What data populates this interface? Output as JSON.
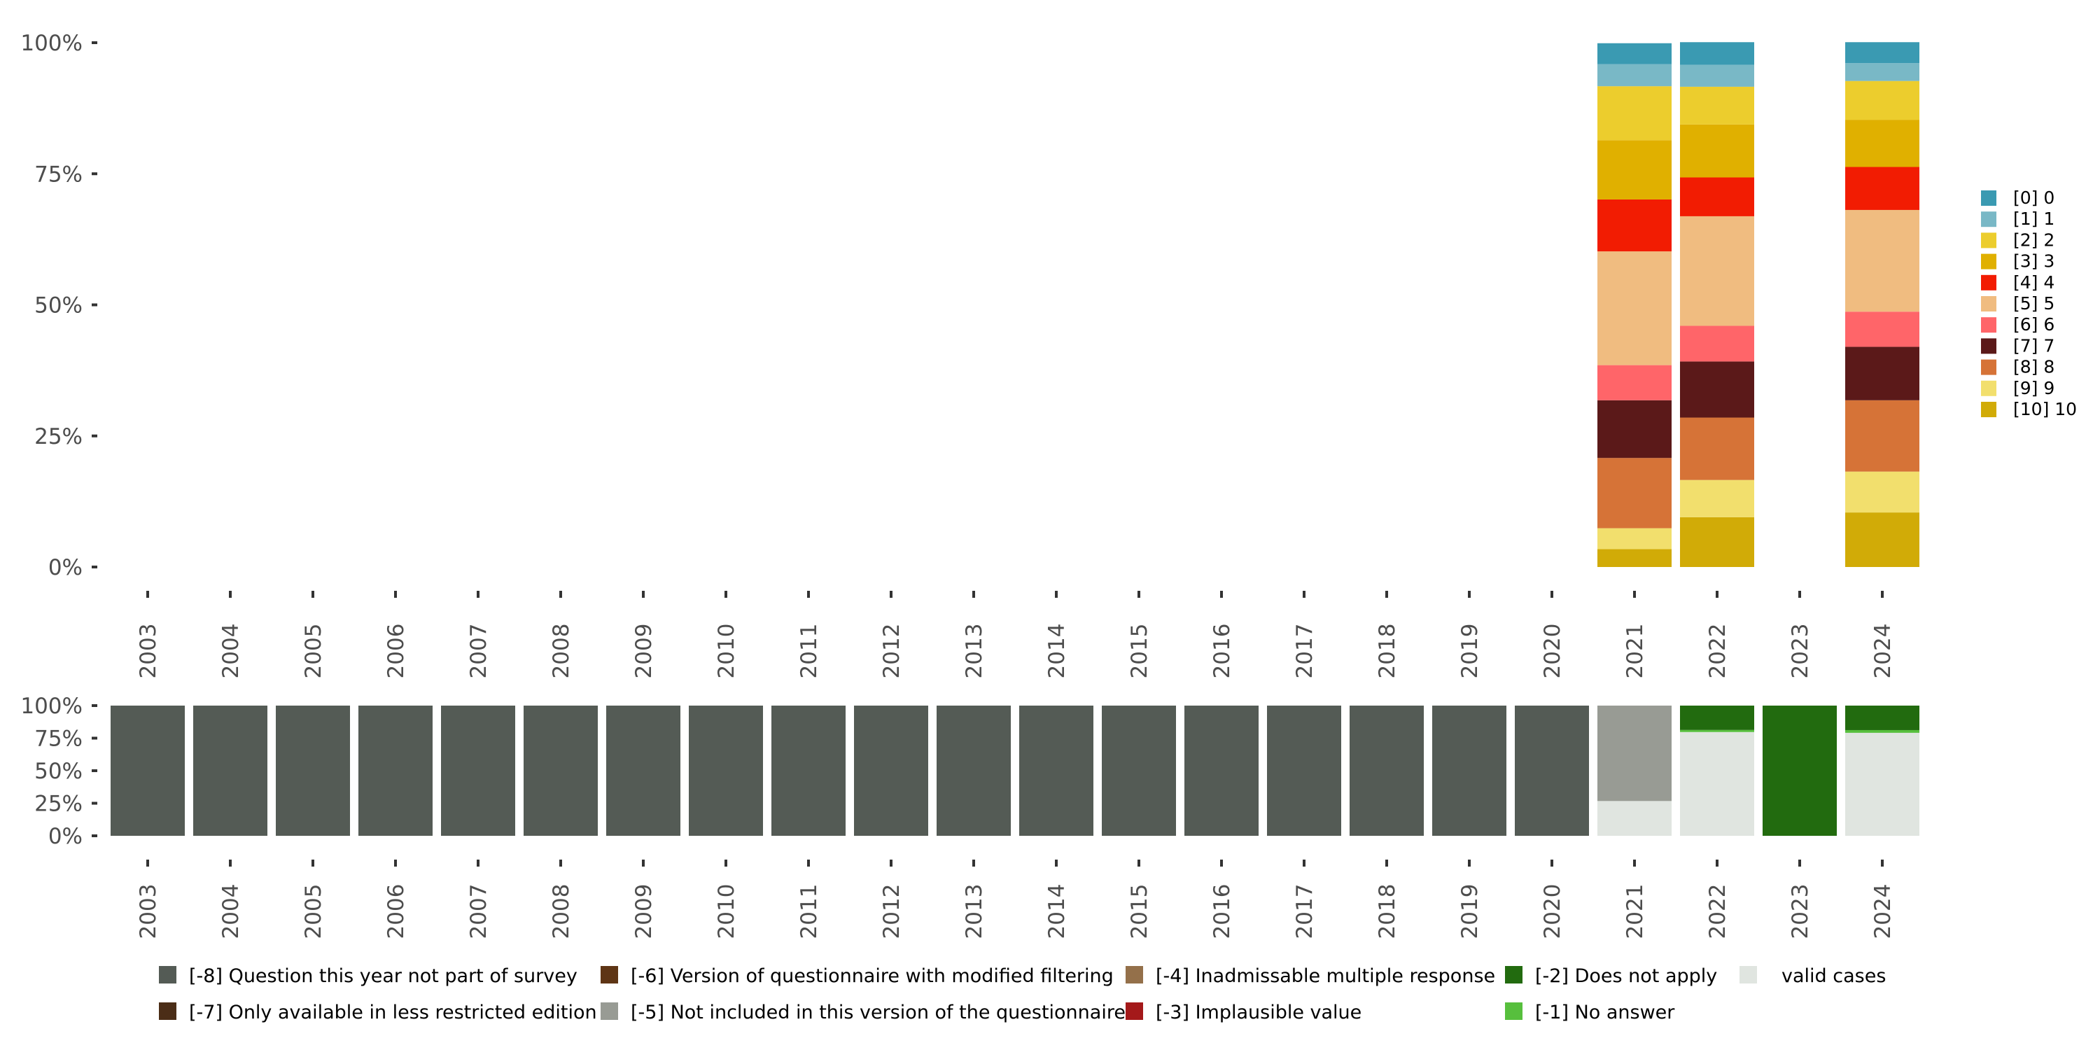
{
  "chart_data": [
    {
      "type": "bar",
      "stacked": true,
      "title": "",
      "xlabel": "",
      "ylabel": "",
      "ylim": [
        0,
        100
      ],
      "y_ticks": [
        "0%",
        "25%",
        "50%",
        "75%",
        "100%"
      ],
      "categories": [
        "2003",
        "2004",
        "2005",
        "2006",
        "2007",
        "2008",
        "2009",
        "2010",
        "2011",
        "2012",
        "2013",
        "2014",
        "2015",
        "2016",
        "2017",
        "2018",
        "2019",
        "2020",
        "2021",
        "2022",
        "2023",
        "2024"
      ],
      "legend_position": "right",
      "series": [
        {
          "name": "[10] 10",
          "color": "#D1AB07",
          "values": {
            "2021": 3.4,
            "2022": 9.5,
            "2024": 10.4
          }
        },
        {
          "name": "[9] 9",
          "color": "#F2DF6D",
          "values": {
            "2021": 4.0,
            "2022": 7.1,
            "2024": 7.8
          }
        },
        {
          "name": "[8] 8",
          "color": "#D67337",
          "values": {
            "2021": 13.4,
            "2022": 11.9,
            "2024": 13.6
          }
        },
        {
          "name": "[7] 7",
          "color": "#5B1919",
          "values": {
            "2021": 11.0,
            "2022": 10.7,
            "2024": 10.2
          }
        },
        {
          "name": "[6] 6",
          "color": "#FF6569",
          "values": {
            "2021": 6.7,
            "2022": 6.8,
            "2024": 6.7
          }
        },
        {
          "name": "[5] 5",
          "color": "#F0BC80",
          "values": {
            "2021": 21.7,
            "2022": 20.9,
            "2024": 19.4
          }
        },
        {
          "name": "[4] 4",
          "color": "#F21C02",
          "values": {
            "2021": 9.9,
            "2022": 7.4,
            "2024": 8.2
          }
        },
        {
          "name": "[3] 3",
          "color": "#E0B000",
          "values": {
            "2021": 11.3,
            "2022": 10.1,
            "2024": 9.0
          }
        },
        {
          "name": "[2] 2",
          "color": "#ECCD2D",
          "values": {
            "2021": 10.3,
            "2022": 7.2,
            "2024": 7.4
          }
        },
        {
          "name": "[1] 1",
          "color": "#79B8C6",
          "values": {
            "2021": 4.2,
            "2022": 4.2,
            "2024": 3.4
          }
        },
        {
          "name": "[0] 0",
          "color": "#3A9AB2",
          "values": {
            "2021": 4.0,
            "2022": 4.3,
            "2024": 4.0
          }
        }
      ]
    },
    {
      "type": "bar",
      "stacked": true,
      "title": "",
      "xlabel": "",
      "ylabel": "",
      "ylim": [
        0,
        100
      ],
      "y_ticks": [
        "0%",
        "25%",
        "50%",
        "75%",
        "100%"
      ],
      "categories": [
        "2003",
        "2004",
        "2005",
        "2006",
        "2007",
        "2008",
        "2009",
        "2010",
        "2011",
        "2012",
        "2013",
        "2014",
        "2015",
        "2016",
        "2017",
        "2018",
        "2019",
        "2020",
        "2021",
        "2022",
        "2023",
        "2024"
      ],
      "legend_position": "bottom",
      "series": [
        {
          "name": "valid cases",
          "color": "#E0E5E0",
          "values": {
            "2021": 26.7,
            "2022": 79.7,
            "2024": 79.1
          }
        },
        {
          "name": "[-1] No answer",
          "color": "#57BF3D",
          "values": {
            "2022": 1.6,
            "2024": 2.1
          }
        },
        {
          "name": "[-2] Does not apply",
          "color": "#226B0F",
          "values": {
            "2022": 18.7,
            "2023": 100,
            "2024": 18.8
          }
        },
        {
          "name": "[-3] Implausible value",
          "color": "#A4191A",
          "values": {}
        },
        {
          "name": "[-4] Inadmissable multiple response",
          "color": "#94704A",
          "values": {}
        },
        {
          "name": "[-5] Not included in this version of the questionnaire",
          "color": "#989B94",
          "values": {
            "2021": 73.3
          }
        },
        {
          "name": "[-6] Version of questionnaire with modified filtering",
          "color": "#5E3515",
          "values": {}
        },
        {
          "name": "[-7] Only available in less restricted edition",
          "color": "#4B2D17",
          "values": {}
        },
        {
          "name": "[-8] Question this year not part of survey",
          "color": "#545B55",
          "values": {
            "2003": 100,
            "2004": 100,
            "2005": 100,
            "2006": 100,
            "2007": 100,
            "2008": 100,
            "2009": 100,
            "2010": 100,
            "2011": 100,
            "2012": 100,
            "2013": 100,
            "2014": 100,
            "2015": 100,
            "2016": 100,
            "2017": 100,
            "2018": 100,
            "2019": 100,
            "2020": 100
          }
        }
      ],
      "legend_order": [
        "[-8] Question this year not part of survey",
        "[-7] Only available in less restricted edition",
        "[-6] Version of questionnaire with modified filtering",
        "[-5] Not included in this version of the questionnaire",
        "[-4] Inadmissable multiple response",
        "[-3] Implausible value",
        "[-2] Does not apply",
        "[-1] No answer",
        "valid cases"
      ]
    }
  ]
}
